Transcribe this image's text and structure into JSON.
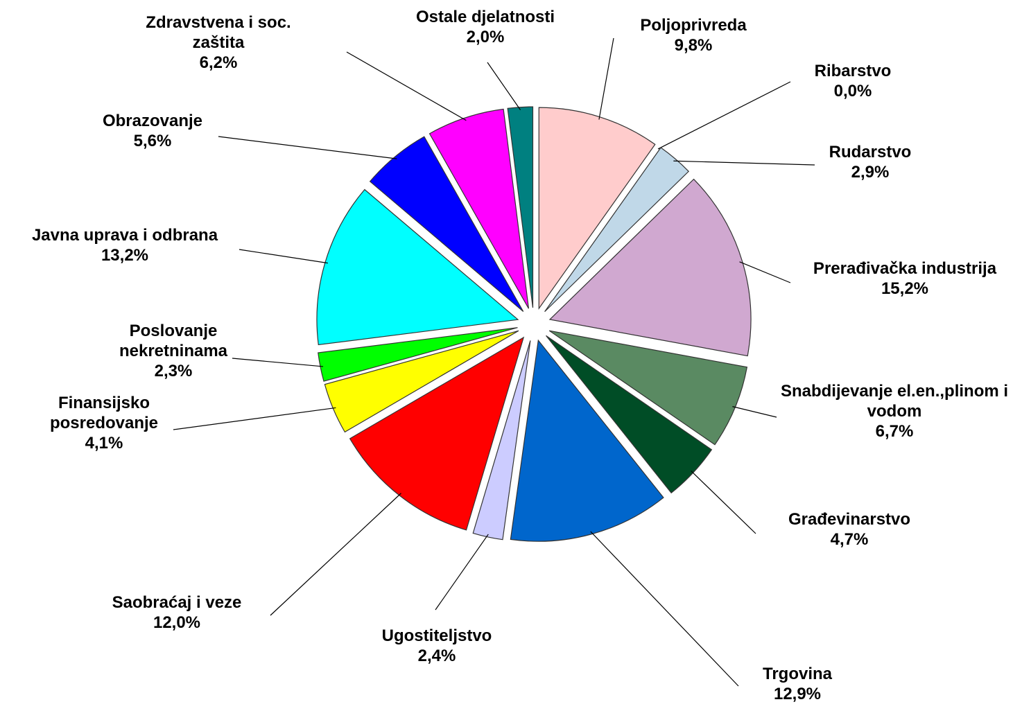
{
  "chart_data": {
    "type": "pie",
    "categories": [
      "Poljoprivreda",
      "Ribarstvo",
      "Rudarstvo",
      "Prerađivačka industrija",
      "Snabdijevanje el.en.,plinom i vodom",
      "Građevinarstvo",
      "Trgovina",
      "Ugostiteljstvo",
      "Saobraćaj i veze",
      "Finansijsko posredovanje",
      "Poslovanje nekretninama",
      "Javna uprava i odbrana",
      "Obrazovanje",
      "Zdravstvena i soc. zaštita",
      "Ostale djelatnosti"
    ],
    "values": [
      9.8,
      0.0,
      2.9,
      15.2,
      6.7,
      4.7,
      12.9,
      2.4,
      12.0,
      4.1,
      2.3,
      13.2,
      5.6,
      6.2,
      2.0
    ],
    "value_labels": [
      "9,8%",
      "0,0%",
      "2,9%",
      "15,2%",
      "6,7%",
      "4,7%",
      "12,9%",
      "2,4%",
      "12,0%",
      "4,1%",
      "2,3%",
      "13,2%",
      "5,6%",
      "6,2%",
      "2,0%"
    ],
    "colors": [
      "#ffcccc",
      "#d8e4f0",
      "#c0d8e8",
      "#d0a8d0",
      "#5a8a62",
      "#004d26",
      "#0066cc",
      "#ccccff",
      "#ff0000",
      "#ffff00",
      "#00ff00",
      "#00ffff",
      "#0000ff",
      "#ff00ff",
      "#008080"
    ]
  }
}
